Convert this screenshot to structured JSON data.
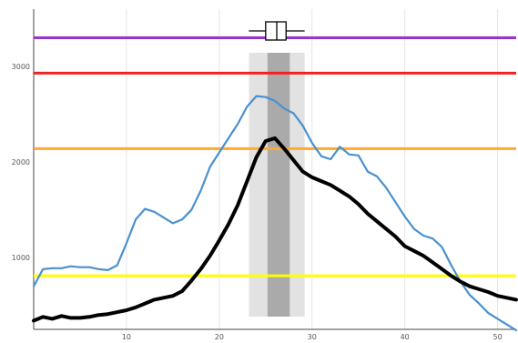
{
  "chart_data": {
    "type": "line",
    "title": "",
    "xlabel": "",
    "ylabel": "",
    "xlim": [
      0,
      52
    ],
    "ylim": [
      250,
      3600
    ],
    "grid": true,
    "x_ticks": [
      10,
      20,
      30,
      40,
      50
    ],
    "y_ticks": [
      1000,
      2000,
      3000
    ],
    "series": [
      {
        "color": "#4a90d0",
        "x": [
          0,
          1,
          2,
          3,
          4,
          5,
          6,
          7,
          8,
          9,
          10,
          11,
          12,
          13,
          14,
          15,
          16,
          17,
          18,
          19,
          20,
          21,
          22,
          23,
          24,
          25,
          26,
          27,
          28,
          29,
          30,
          31,
          32,
          33,
          34,
          35,
          36,
          37,
          38,
          39,
          40,
          41,
          42,
          43,
          44,
          45,
          46,
          47,
          48,
          49,
          50,
          51,
          52
        ],
        "values": [
          700,
          880,
          890,
          890,
          910,
          900,
          900,
          880,
          870,
          920,
          1150,
          1400,
          1510,
          1480,
          1420,
          1360,
          1400,
          1500,
          1700,
          1950,
          2100,
          2250,
          2400,
          2580,
          2690,
          2680,
          2640,
          2560,
          2510,
          2380,
          2200,
          2060,
          2030,
          2160,
          2080,
          2070,
          1900,
          1850,
          1730,
          1580,
          1430,
          1300,
          1230,
          1200,
          1110,
          920,
          750,
          610,
          520,
          420,
          360,
          300,
          240
        ]
      },
      {
        "color": "#000000",
        "x": [
          0,
          1,
          2,
          3,
          4,
          5,
          6,
          7,
          8,
          9,
          10,
          11,
          12,
          13,
          14,
          15,
          16,
          17,
          18,
          19,
          20,
          21,
          22,
          23,
          24,
          25,
          26,
          27,
          28,
          29,
          30,
          31,
          32,
          33,
          34,
          35,
          36,
          37,
          38,
          39,
          40,
          41,
          42,
          43,
          44,
          45,
          46,
          47,
          48,
          49,
          50,
          51,
          52
        ],
        "values": [
          340,
          380,
          360,
          390,
          370,
          370,
          380,
          400,
          410,
          430,
          450,
          480,
          520,
          560,
          580,
          600,
          650,
          760,
          880,
          1020,
          1180,
          1350,
          1550,
          1800,
          2050,
          2220,
          2250,
          2140,
          2020,
          1900,
          1840,
          1800,
          1760,
          1700,
          1640,
          1560,
          1460,
          1380,
          1300,
          1220,
          1120,
          1070,
          1020,
          950,
          880,
          810,
          750,
          700,
          670,
          640,
          600,
          580,
          560
        ]
      }
    ],
    "reference_lines": [
      {
        "y": 3300,
        "color": "#9933cc"
      },
      {
        "y": 2930,
        "color": "#ee2222"
      },
      {
        "y": 2140,
        "color": "#ffaa33"
      },
      {
        "y": 810,
        "color": "#ffff00"
      }
    ],
    "shaded_bands": [
      {
        "x": [
          23.2,
          29.2
        ],
        "color": "#e2e2e2"
      },
      {
        "x": [
          25.2,
          27.6
        ],
        "color": "#aaaaaa"
      }
    ],
    "boxplot": {
      "whisker_low": 23.2,
      "q1": 25.0,
      "median": 26.2,
      "q3": 27.2,
      "whisker_high": 29.2
    }
  }
}
